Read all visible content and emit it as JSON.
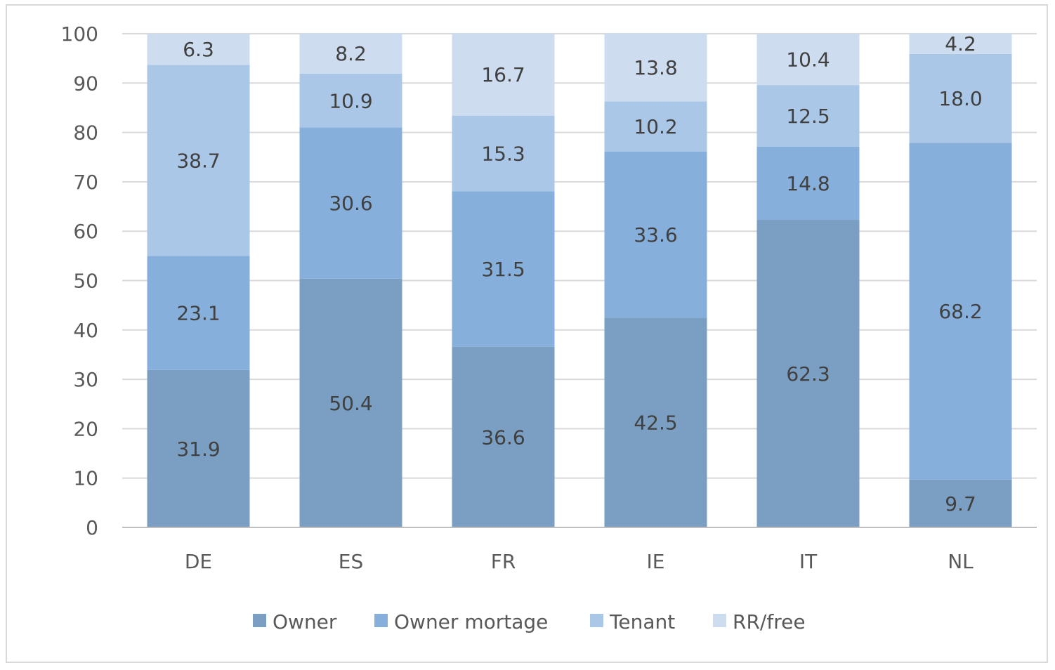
{
  "chart_data": {
    "type": "bar",
    "stacked": true,
    "categories": [
      "DE",
      "ES",
      "FR",
      "IE",
      "IT",
      "NL"
    ],
    "series": [
      {
        "name": "Owner",
        "color": "#7a9fc2",
        "values": [
          31.9,
          50.4,
          36.6,
          42.5,
          62.3,
          9.7
        ]
      },
      {
        "name": "Owner mortage",
        "color": "#86b0db",
        "values": [
          23.1,
          30.6,
          31.5,
          33.6,
          14.8,
          68.2
        ]
      },
      {
        "name": "Tenant",
        "color": "#abc7e7",
        "values": [
          38.7,
          10.9,
          15.3,
          10.2,
          12.5,
          18.0
        ]
      },
      {
        "name": "RR/free",
        "color": "#cddcee",
        "values": [
          6.3,
          8.2,
          16.7,
          13.8,
          10.4,
          4.2
        ]
      }
    ],
    "data_labels": [
      [
        "31.9",
        "50.4",
        "36.6",
        "42.5",
        "62.3",
        "9.7"
      ],
      [
        "23.1",
        "30.6",
        "31.5",
        "33.6",
        "14.8",
        "68.2"
      ],
      [
        "38.7",
        "10.9",
        "15.3",
        "10.2",
        "12.5",
        "18.0"
      ],
      [
        "6.3",
        "8.2",
        "16.7",
        "13.8",
        "10.4",
        "4.2"
      ]
    ],
    "ylim": [
      0,
      100
    ],
    "yticks": [
      "0",
      "10",
      "20",
      "30",
      "40",
      "50",
      "60",
      "70",
      "80",
      "90",
      "100"
    ],
    "grid": true,
    "legend_position": "bottom",
    "title": "",
    "xlabel": "",
    "ylabel": ""
  }
}
